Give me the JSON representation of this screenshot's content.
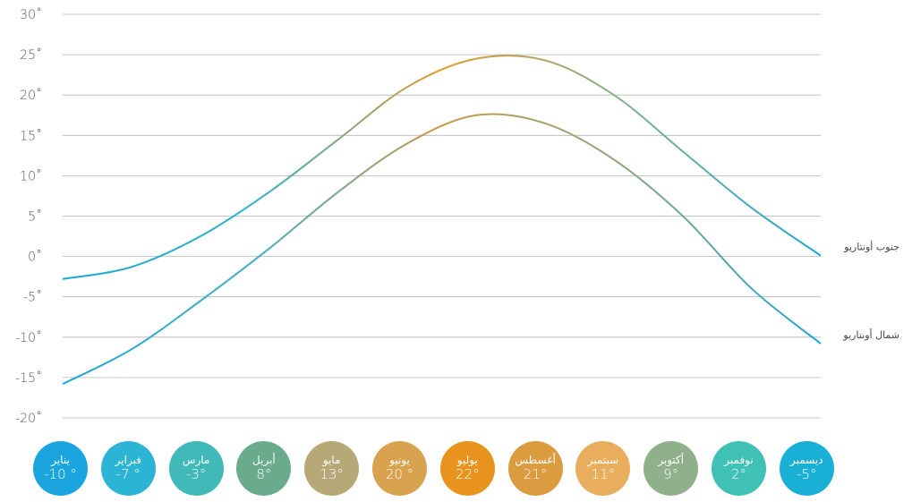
{
  "chart_data": {
    "type": "line",
    "y_ticks": [
      "30˚",
      "25˚",
      "20˚",
      "15˚",
      "10˚",
      "5˚",
      "0˚",
      "-5˚",
      "-10˚",
      "-15˚",
      "-20˚"
    ],
    "y_tick_values": [
      30,
      25,
      20,
      15,
      10,
      5,
      0,
      -5,
      -10,
      -15,
      -20
    ],
    "ylim": [
      -20,
      30
    ],
    "grid": true,
    "x": [
      0,
      1,
      2,
      3,
      4,
      5,
      6,
      7,
      8,
      9,
      10,
      11
    ],
    "series": [
      {
        "name": "جنوب أونتاريو",
        "values": [
          -2.8,
          -1.3,
          2.5,
          8.0,
          14.5,
          21.0,
          24.5,
          24.3,
          20.0,
          13.0,
          6.0,
          0.1
        ],
        "color_start": "#1aa6d6",
        "color_end": "#e39a2c"
      },
      {
        "name": "شمال أونتاريو",
        "values": [
          -15.8,
          -11.5,
          -5.5,
          1.0,
          8.0,
          14.0,
          17.5,
          16.5,
          12.0,
          5.0,
          -4.0,
          -10.8
        ],
        "color_start": "#1aa6d6",
        "color_end": "#c79a4a"
      }
    ],
    "months": [
      {
        "name": "يناير",
        "temp": "-10 °",
        "color": "#1aa5df"
      },
      {
        "name": "فبراير",
        "temp": "-7 °",
        "color": "#2bb4d3"
      },
      {
        "name": "مارس",
        "temp": "-3°",
        "color": "#41b9b8"
      },
      {
        "name": "أبريل",
        "temp": "8°",
        "color": "#6aab8e"
      },
      {
        "name": "مايو",
        "temp": "13°",
        "color": "#b6a877"
      },
      {
        "name": "يونيو",
        "temp": "20 °",
        "color": "#d9a24f"
      },
      {
        "name": "يوليو",
        "temp": "22°",
        "color": "#e8931e"
      },
      {
        "name": "أغسطس",
        "temp": "21°",
        "color": "#db9b3f"
      },
      {
        "name": "سبتمبر",
        "temp": "11°",
        "color": "#e8ad5d"
      },
      {
        "name": "أكتوبر",
        "temp": "9°",
        "color": "#8fb08b"
      },
      {
        "name": "نوفمبر",
        "temp": "2°",
        "color": "#40c1b5"
      },
      {
        "name": "ديسمبر",
        "temp": "-5°",
        "color": "#1ab0d6"
      }
    ]
  }
}
